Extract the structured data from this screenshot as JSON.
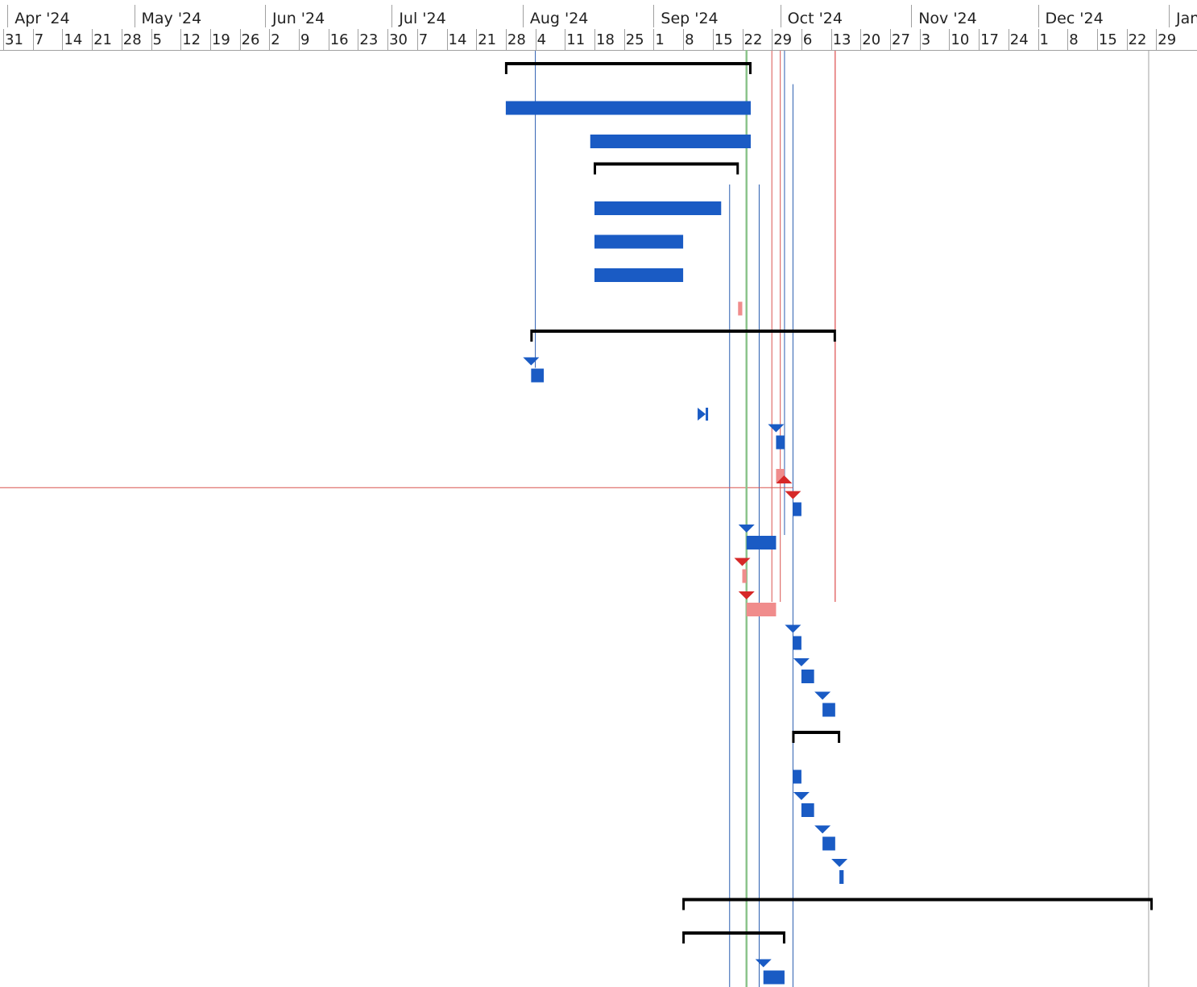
{
  "timescale": {
    "months": [
      "Apr '24",
      "May '24",
      "Jun '24",
      "Jul '24",
      "Aug '24",
      "Sep '24",
      "Oct '24",
      "Nov '24",
      "Dec '24",
      "Jan"
    ],
    "weeks": [
      "31",
      "7",
      "14",
      "21",
      "28",
      "5",
      "12",
      "19",
      "26",
      "2",
      "9",
      "16",
      "23",
      "30",
      "7",
      "14",
      "21",
      "28",
      "4",
      "11",
      "18",
      "25",
      "1",
      "8",
      "15",
      "22",
      "29",
      "6",
      "13",
      "20",
      "27",
      "3",
      "10",
      "17",
      "24",
      "1",
      "8",
      "15",
      "22",
      "29"
    ]
  },
  "colors": {
    "task": "#1a5bc4",
    "summary": "#000000",
    "critical_task": "#f08c8c",
    "critical_marker": "#d62828",
    "link": "#2a5db0",
    "critical_link": "#d9534f",
    "status_date_line": "#8cc48c",
    "gridline": "#a0a0a0"
  },
  "rows": [
    {
      "kind": "summary",
      "start": "2024-07-28",
      "end": "2024-09-24"
    },
    {
      "kind": "task",
      "start": "2024-07-28",
      "end": "2024-09-24"
    },
    {
      "kind": "task",
      "start": "2024-08-17",
      "end": "2024-09-24"
    },
    {
      "kind": "summary",
      "start": "2024-08-18",
      "end": "2024-09-21"
    },
    {
      "kind": "task",
      "start": "2024-08-18",
      "end": "2024-09-17"
    },
    {
      "kind": "task",
      "start": "2024-08-18",
      "end": "2024-09-08"
    },
    {
      "kind": "task",
      "start": "2024-08-18",
      "end": "2024-09-08"
    },
    {
      "kind": "critical",
      "start": "2024-09-21",
      "end": "2024-09-22"
    },
    {
      "kind": "summary",
      "start": "2024-08-03",
      "end": "2024-10-14"
    },
    {
      "kind": "task",
      "start": "2024-08-03",
      "end": "2024-08-06",
      "marker": "down"
    },
    {
      "kind": "milestone",
      "start": "2024-09-12",
      "end": "2024-09-13"
    },
    {
      "kind": "task",
      "start": "2024-09-30",
      "end": "2024-10-02",
      "marker": "down"
    },
    {
      "kind": "critical",
      "start": "2024-09-30",
      "end": "2024-10-02",
      "marker": "up-red"
    },
    {
      "kind": "task",
      "start": "2024-10-04",
      "end": "2024-10-06",
      "marker": "down-red"
    },
    {
      "kind": "task",
      "start": "2024-09-23",
      "end": "2024-09-30",
      "marker": "down"
    },
    {
      "kind": "critical",
      "start": "2024-09-22",
      "end": "2024-09-23",
      "marker": "down-red"
    },
    {
      "kind": "critical",
      "start": "2024-09-23",
      "end": "2024-09-30",
      "marker": "down-red"
    },
    {
      "kind": "task",
      "start": "2024-10-04",
      "end": "2024-10-06",
      "marker": "down"
    },
    {
      "kind": "task",
      "start": "2024-10-06",
      "end": "2024-10-09",
      "marker": "down"
    },
    {
      "kind": "task",
      "start": "2024-10-11",
      "end": "2024-10-14",
      "marker": "down"
    },
    {
      "kind": "summary",
      "start": "2024-10-04",
      "end": "2024-10-15"
    },
    {
      "kind": "task",
      "start": "2024-10-04",
      "end": "2024-10-06"
    },
    {
      "kind": "task",
      "start": "2024-10-06",
      "end": "2024-10-09",
      "marker": "down"
    },
    {
      "kind": "task",
      "start": "2024-10-11",
      "end": "2024-10-14",
      "marker": "down"
    },
    {
      "kind": "task",
      "start": "2024-10-15",
      "end": "2024-10-16",
      "marker": "down"
    },
    {
      "kind": "summary",
      "start": "2024-09-08",
      "end": "2024-12-28"
    },
    {
      "kind": "summary",
      "start": "2024-09-08",
      "end": "2024-10-02"
    },
    {
      "kind": "task",
      "start": "2024-09-27",
      "end": "2024-10-02",
      "marker": "down"
    }
  ],
  "status_date": "2024-09-23",
  "vertical_links": [
    {
      "date": "2024-08-04",
      "from_row": 0,
      "to_row": 9,
      "color": "link"
    },
    {
      "date": "2024-09-19",
      "from_row": 4,
      "to_row": 29,
      "color": "link"
    },
    {
      "date": "2024-09-23",
      "from_row": 7,
      "to_row": 29,
      "color": "critical_link"
    },
    {
      "date": "2024-09-26",
      "from_row": 4,
      "to_row": 29,
      "color": "link"
    },
    {
      "date": "2024-09-29",
      "from_row": 0,
      "to_row": 16,
      "color": "critical_link"
    },
    {
      "date": "2024-10-01",
      "from_row": 0,
      "to_row": 16,
      "color": "critical_link"
    },
    {
      "date": "2024-10-02",
      "from_row": 0,
      "to_row": 14,
      "color": "link"
    },
    {
      "date": "2024-10-04",
      "from_row": 1,
      "to_row": 29,
      "color": "link"
    },
    {
      "date": "2024-10-14",
      "from_row": 0,
      "to_row": 16,
      "color": "critical_marker"
    }
  ],
  "horizontal_links": [
    {
      "row": 12.2,
      "from": "2024-03-31",
      "to": "2024-10-04",
      "color": "critical_link"
    }
  ]
}
